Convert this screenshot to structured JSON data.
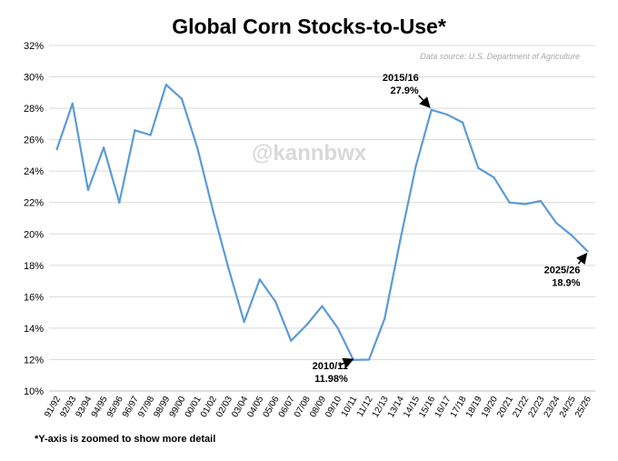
{
  "chart_data": {
    "type": "line",
    "title": "Global Corn Stocks-to-Use*",
    "source_note": "Data source: U.S. Department of Agriculture",
    "watermark": "@kannbwx",
    "footnote": "*Y-axis is zoomed to show more detail",
    "categories": [
      "91/92",
      "92/93",
      "93/94",
      "94/95",
      "95/96",
      "96/97",
      "97/98",
      "98/99",
      "99/00",
      "00/01",
      "01/02",
      "02/03",
      "03/04",
      "04/05",
      "05/06",
      "06/07",
      "07/08",
      "08/09",
      "09/10",
      "10/11",
      "11/12",
      "12/13",
      "13/14",
      "14/15",
      "15/16",
      "16/17",
      "17/18",
      "18/19",
      "19/20",
      "20/21",
      "21/22",
      "22/23",
      "23/24",
      "24/25",
      "25/26"
    ],
    "series": [
      {
        "name": "",
        "values": [
          25.4,
          28.3,
          22.8,
          25.5,
          22.0,
          26.6,
          26.3,
          29.5,
          28.6,
          25.5,
          21.5,
          17.8,
          14.4,
          17.1,
          15.7,
          13.2,
          14.2,
          15.4,
          14.0,
          11.98,
          12.0,
          14.6,
          19.6,
          24.3,
          27.9,
          27.6,
          27.1,
          24.2,
          23.6,
          22.0,
          21.9,
          22.1,
          20.7,
          19.9,
          18.9
        ]
      }
    ],
    "ylim": [
      10,
      32
    ],
    "yticks": [
      "10%",
      "12%",
      "14%",
      "16%",
      "18%",
      "20%",
      "22%",
      "24%",
      "26%",
      "28%",
      "30%",
      "32%"
    ],
    "grid": true,
    "line_color": "#5b9bd5",
    "annotations": [
      {
        "category": "15/16",
        "line1": "2015/16",
        "line2": "27.9%",
        "side": "left-above"
      },
      {
        "category": "10/11",
        "line1": "2010/11",
        "line2": "11.98%",
        "side": "left-below"
      },
      {
        "category": "25/26",
        "line1": "2025/26",
        "line2": "18.9%",
        "side": "below"
      }
    ]
  }
}
